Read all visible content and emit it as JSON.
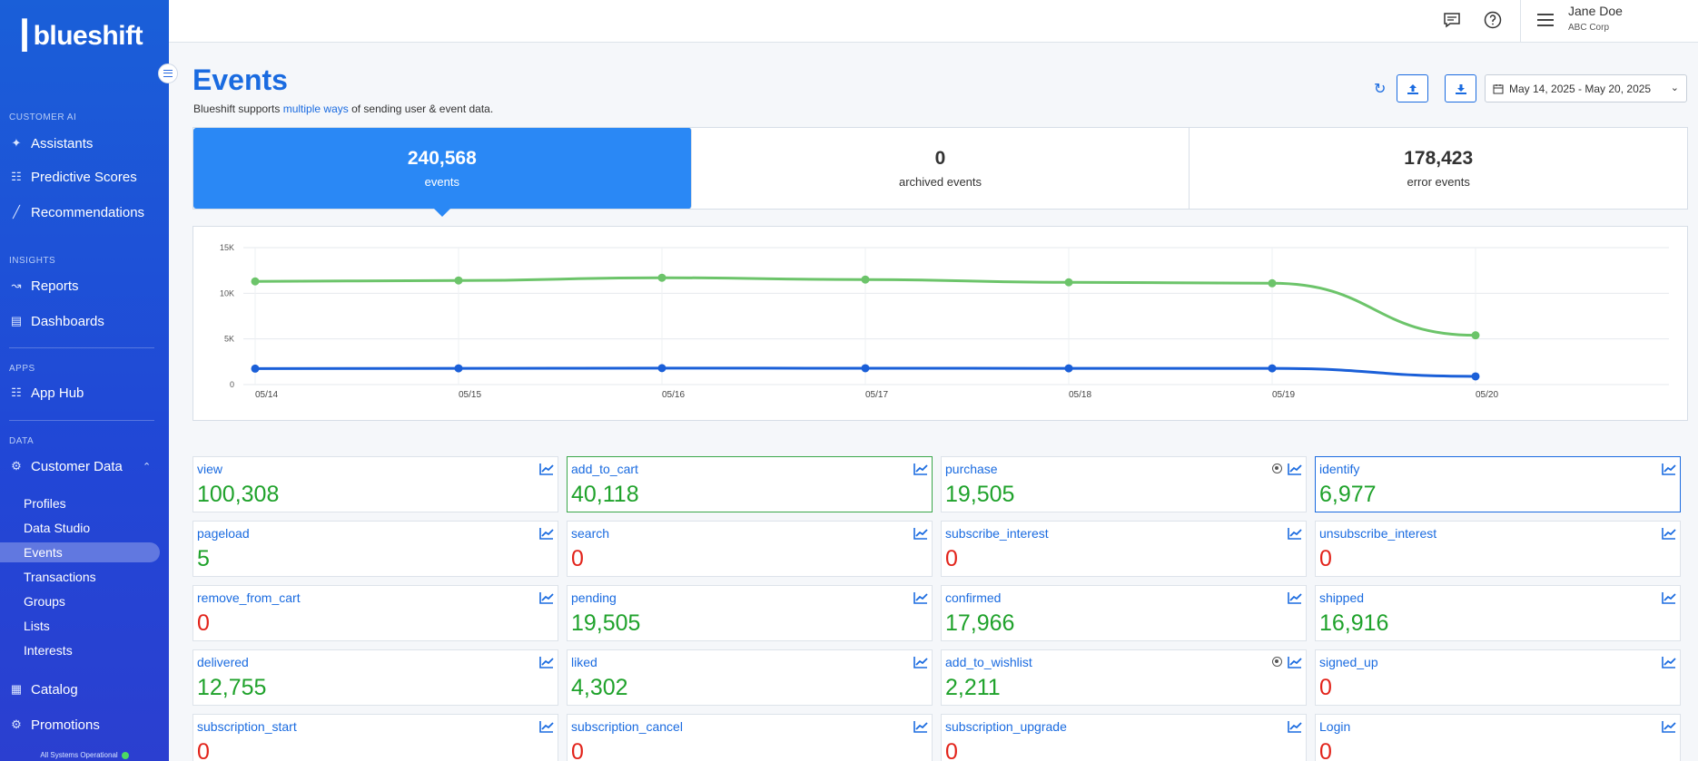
{
  "sidebar": {
    "logo": "blueshift",
    "sections": {
      "customer_ai": "CUSTOMER AI",
      "insights": "INSIGHTS",
      "apps": "APPS",
      "data": "DATA"
    },
    "items": {
      "assistants": "Assistants",
      "predictive_scores": "Predictive Scores",
      "recommendations": "Recommendations",
      "reports": "Reports",
      "dashboards": "Dashboards",
      "app_hub": "App Hub",
      "customer_data": "Customer Data",
      "catalog": "Catalog",
      "promotions": "Promotions"
    },
    "sub_items": [
      "Profiles",
      "Data Studio",
      "Events",
      "Transactions",
      "Groups",
      "Lists",
      "Interests"
    ],
    "active_sub_item": "Events",
    "status": "All Systems Operational"
  },
  "topbar": {
    "user_name": "Jane Doe",
    "user_org": "ABC Corp"
  },
  "page": {
    "title": "Events",
    "subtitle_prefix": "Blueshift supports ",
    "subtitle_link": "multiple ways",
    "subtitle_suffix": " of sending user & event data.",
    "date_range": "May 14, 2025 - May 20, 2025"
  },
  "stats": [
    {
      "value": "240,568",
      "label": "events",
      "active": true
    },
    {
      "value": "0",
      "label": "archived events",
      "active": false
    },
    {
      "value": "178,423",
      "label": "error events",
      "active": false
    }
  ],
  "chart_data": {
    "type": "line",
    "categories": [
      "05/14",
      "05/15",
      "05/16",
      "05/17",
      "05/18",
      "05/19",
      "05/20"
    ],
    "y_ticks": [
      "0",
      "5K",
      "10K",
      "15K"
    ],
    "ylim": [
      0,
      15000
    ],
    "grid": true,
    "series": [
      {
        "color": "#6cc46a",
        "values": [
          11300,
          11400,
          11700,
          11500,
          11200,
          11100,
          5400
        ]
      },
      {
        "color": "#1a5fd8",
        "values": [
          1750,
          1780,
          1800,
          1790,
          1780,
          1780,
          900
        ]
      }
    ]
  },
  "tiles": [
    {
      "name": "view",
      "value": "100,308",
      "zero": false,
      "border": "",
      "dot": false
    },
    {
      "name": "add_to_cart",
      "value": "40,118",
      "zero": false,
      "border": "green",
      "dot": false
    },
    {
      "name": "purchase",
      "value": "19,505",
      "zero": false,
      "border": "",
      "dot": true
    },
    {
      "name": "identify",
      "value": "6,977",
      "zero": false,
      "border": "blue",
      "dot": false
    },
    {
      "name": "pageload",
      "value": "5",
      "zero": false,
      "border": "",
      "dot": false
    },
    {
      "name": "search",
      "value": "0",
      "zero": true,
      "border": "",
      "dot": false
    },
    {
      "name": "subscribe_interest",
      "value": "0",
      "zero": true,
      "border": "",
      "dot": false
    },
    {
      "name": "unsubscribe_interest",
      "value": "0",
      "zero": true,
      "border": "",
      "dot": false
    },
    {
      "name": "remove_from_cart",
      "value": "0",
      "zero": true,
      "border": "",
      "dot": false
    },
    {
      "name": "pending",
      "value": "19,505",
      "zero": false,
      "border": "",
      "dot": false
    },
    {
      "name": "confirmed",
      "value": "17,966",
      "zero": false,
      "border": "",
      "dot": false
    },
    {
      "name": "shipped",
      "value": "16,916",
      "zero": false,
      "border": "",
      "dot": false
    },
    {
      "name": "delivered",
      "value": "12,755",
      "zero": false,
      "border": "",
      "dot": false
    },
    {
      "name": "liked",
      "value": "4,302",
      "zero": false,
      "border": "",
      "dot": false
    },
    {
      "name": "add_to_wishlist",
      "value": "2,211",
      "zero": false,
      "border": "",
      "dot": true
    },
    {
      "name": "signed_up",
      "value": "0",
      "zero": true,
      "border": "",
      "dot": false
    },
    {
      "name": "subscription_start",
      "value": "0",
      "zero": true,
      "border": "",
      "dot": false
    },
    {
      "name": "subscription_cancel",
      "value": "0",
      "zero": true,
      "border": "",
      "dot": false
    },
    {
      "name": "subscription_upgrade",
      "value": "0",
      "zero": true,
      "border": "",
      "dot": false
    },
    {
      "name": "Login",
      "value": "0",
      "zero": true,
      "border": "",
      "dot": false
    }
  ]
}
